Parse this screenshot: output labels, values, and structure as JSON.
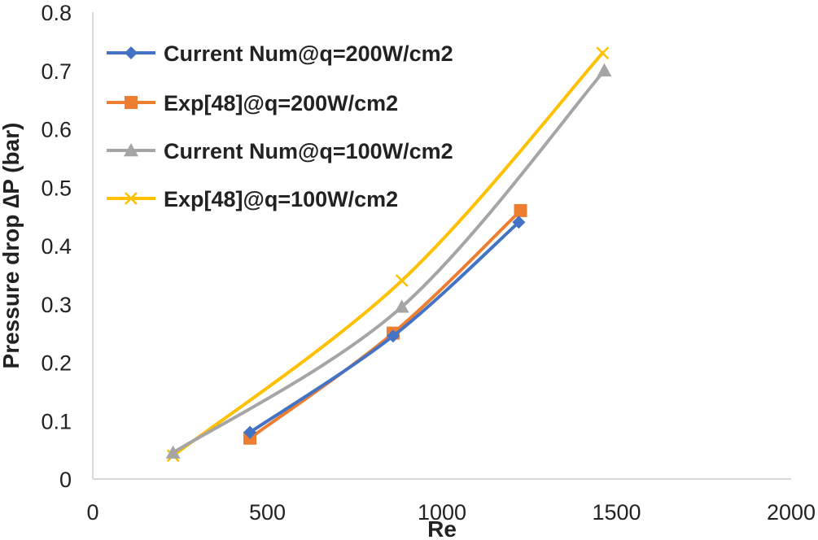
{
  "chart_data": {
    "type": "line",
    "title": "",
    "xlabel": "Re",
    "ylabel": "Pressure drop ∆P (bar)",
    "xlim": [
      0,
      2000
    ],
    "ylim": [
      0,
      0.8
    ],
    "x_ticks": [
      "0",
      "500",
      "1000",
      "1500",
      "2000"
    ],
    "y_ticks": [
      "0",
      "0.1",
      "0.2",
      "0.3",
      "0.4",
      "0.5",
      "0.6",
      "0.7",
      "0.8"
    ],
    "grid": false,
    "legend_position": "top-left",
    "series": [
      {
        "name": "Current Num@q=200W/cm2",
        "color": "#4472C4",
        "marker": "diamond",
        "points": [
          [
            450,
            0.08
          ],
          [
            860,
            0.245
          ],
          [
            1220,
            0.44
          ]
        ]
      },
      {
        "name": "Exp[48]@q=200W/cm2",
        "color": "#ED7D31",
        "marker": "square",
        "points": [
          [
            450,
            0.07
          ],
          [
            860,
            0.25
          ],
          [
            1225,
            0.46
          ]
        ]
      },
      {
        "name": "Current Num@q=100W/cm2",
        "color": "#A5A5A5",
        "marker": "triangle",
        "points": [
          [
            230,
            0.045
          ],
          [
            885,
            0.295
          ],
          [
            1465,
            0.7
          ]
        ]
      },
      {
        "name": "Exp[48]@q=100W/cm2",
        "color": "#FFC000",
        "marker": "x",
        "points": [
          [
            230,
            0.04
          ],
          [
            885,
            0.34
          ],
          [
            1460,
            0.73
          ]
        ]
      }
    ]
  }
}
